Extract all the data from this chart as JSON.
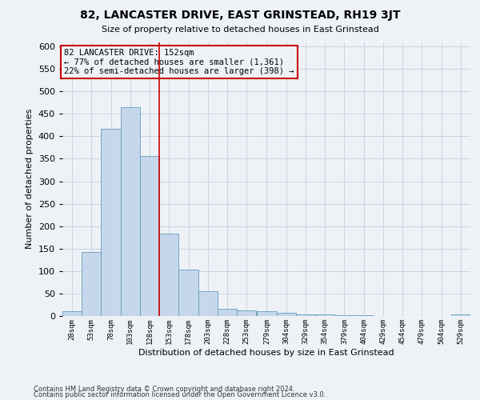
{
  "title": "82, LANCASTER DRIVE, EAST GRINSTEAD, RH19 3JT",
  "subtitle": "Size of property relative to detached houses in East Grinstead",
  "xlabel": "Distribution of detached houses by size in East Grinstead",
  "ylabel": "Number of detached properties",
  "footnote1": "Contains HM Land Registry data © Crown copyright and database right 2024.",
  "footnote2": "Contains public sector information licensed under the Open Government Licence v3.0.",
  "annotation_title": "82 LANCASTER DRIVE: 152sqm",
  "annotation_line1": "← 77% of detached houses are smaller (1,361)",
  "annotation_line2": "22% of semi-detached houses are larger (398) →",
  "bar_color": "#c5d8eb",
  "bar_edge_color": "#6699bb",
  "vline_color": "#cc0000",
  "annotation_box_edgecolor": "#cc0000",
  "background_color": "#eef2f7",
  "categories": [
    "28sqm",
    "53sqm",
    "78sqm",
    "103sqm",
    "128sqm",
    "153sqm",
    "178sqm",
    "203sqm",
    "228sqm",
    "253sqm",
    "279sqm",
    "304sqm",
    "329sqm",
    "354sqm",
    "379sqm",
    "404sqm",
    "429sqm",
    "454sqm",
    "479sqm",
    "504sqm",
    "529sqm"
  ],
  "values": [
    10,
    143,
    417,
    465,
    357,
    183,
    103,
    56,
    16,
    13,
    10,
    8,
    4,
    3,
    2,
    2,
    0,
    0,
    0,
    0,
    4
  ],
  "bin_starts": [
    28,
    53,
    78,
    103,
    128,
    153,
    178,
    203,
    228,
    253,
    279,
    304,
    329,
    354,
    379,
    404,
    429,
    454,
    479,
    504,
    529
  ],
  "bin_width": 25,
  "ylim": [
    0,
    610
  ],
  "yticks": [
    0,
    50,
    100,
    150,
    200,
    250,
    300,
    350,
    400,
    450,
    500,
    550,
    600
  ],
  "xlim_left": 28,
  "xlim_right": 554,
  "grid_color": "#c8d4e0",
  "vline_x": 153,
  "title_fontsize": 10,
  "subtitle_fontsize": 8
}
